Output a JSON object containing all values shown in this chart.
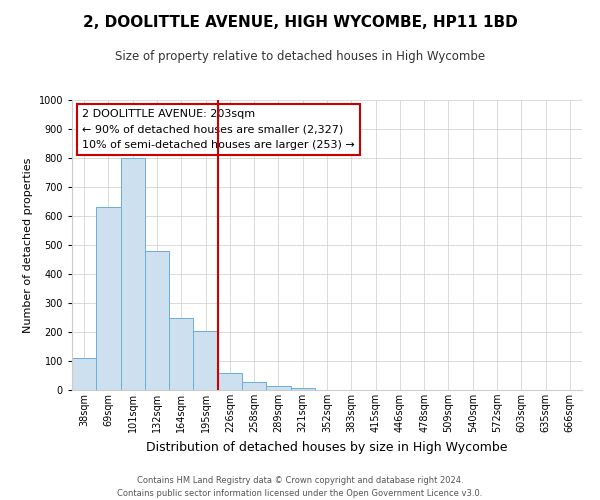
{
  "title": "2, DOOLITTLE AVENUE, HIGH WYCOMBE, HP11 1BD",
  "subtitle": "Size of property relative to detached houses in High Wycombe",
  "xlabel": "Distribution of detached houses by size in High Wycombe",
  "ylabel": "Number of detached properties",
  "bin_labels": [
    "38sqm",
    "69sqm",
    "101sqm",
    "132sqm",
    "164sqm",
    "195sqm",
    "226sqm",
    "258sqm",
    "289sqm",
    "321sqm",
    "352sqm",
    "383sqm",
    "415sqm",
    "446sqm",
    "478sqm",
    "509sqm",
    "540sqm",
    "572sqm",
    "603sqm",
    "635sqm",
    "666sqm"
  ],
  "bin_values": [
    110,
    630,
    800,
    480,
    250,
    205,
    60,
    27,
    15,
    8,
    0,
    0,
    0,
    0,
    0,
    0,
    0,
    0,
    0,
    0,
    0
  ],
  "bar_color": "#cce0f0",
  "bar_edge_color": "#6aafd6",
  "vline_x": 5.5,
  "vline_color": "#cc0000",
  "ylim": [
    0,
    1000
  ],
  "yticks": [
    0,
    100,
    200,
    300,
    400,
    500,
    600,
    700,
    800,
    900,
    1000
  ],
  "annotation_title": "2 DOOLITTLE AVENUE: 203sqm",
  "annotation_line1": "← 90% of detached houses are smaller (2,327)",
  "annotation_line2": "10% of semi-detached houses are larger (253) →",
  "annotation_box_color": "#ffffff",
  "annotation_box_edge": "#cc0000",
  "footer_line1": "Contains HM Land Registry data © Crown copyright and database right 2024.",
  "footer_line2": "Contains public sector information licensed under the Open Government Licence v3.0.",
  "background_color": "#ffffff",
  "grid_color": "#cccccc",
  "title_fontsize": 11,
  "subtitle_fontsize": 8.5,
  "xlabel_fontsize": 9,
  "ylabel_fontsize": 8,
  "tick_fontsize": 7,
  "footer_fontsize": 6,
  "annotation_fontsize": 8
}
